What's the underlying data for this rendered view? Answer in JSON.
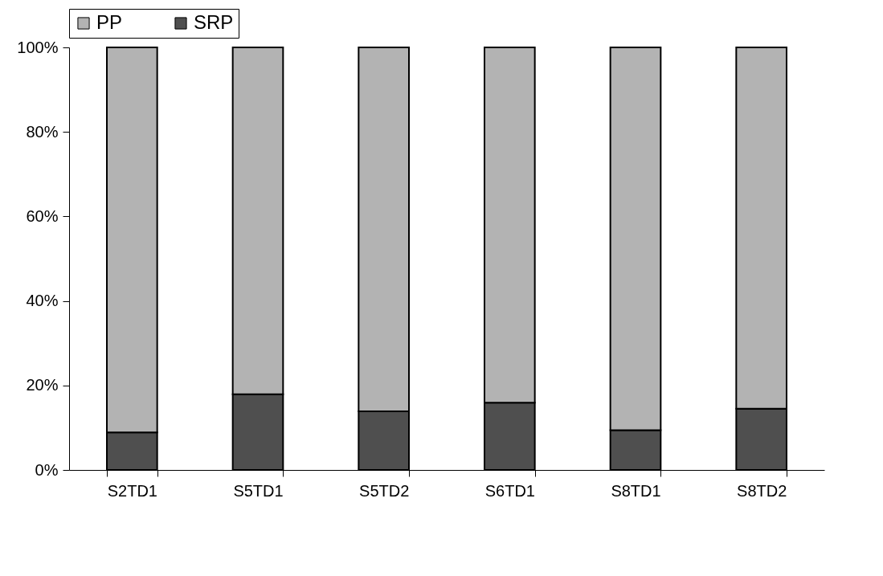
{
  "chart_data": {
    "type": "bar",
    "stacked": true,
    "categories": [
      "S2TD1",
      "S5TD1",
      "S5TD2",
      "S6TD1",
      "S8TD1",
      "S8TD2"
    ],
    "series": [
      {
        "name": "SRP",
        "color": "#4f4f4f",
        "values": [
          8.9,
          17.9,
          13.9,
          15.9,
          9.4,
          14.5
        ]
      },
      {
        "name": "PP",
        "color": "#b3b3b3",
        "values": [
          91.1,
          82.1,
          86.1,
          84.1,
          90.6,
          85.5
        ]
      }
    ],
    "ylim": [
      0,
      100
    ],
    "yticks": [
      {
        "value": 0,
        "label": "0%"
      },
      {
        "value": 20,
        "label": "20%"
      },
      {
        "value": 40,
        "label": "40%"
      },
      {
        "value": 60,
        "label": "60%"
      },
      {
        "value": 80,
        "label": "80%"
      },
      {
        "value": 100,
        "label": "100%"
      }
    ],
    "grid": false,
    "legend": "top"
  }
}
